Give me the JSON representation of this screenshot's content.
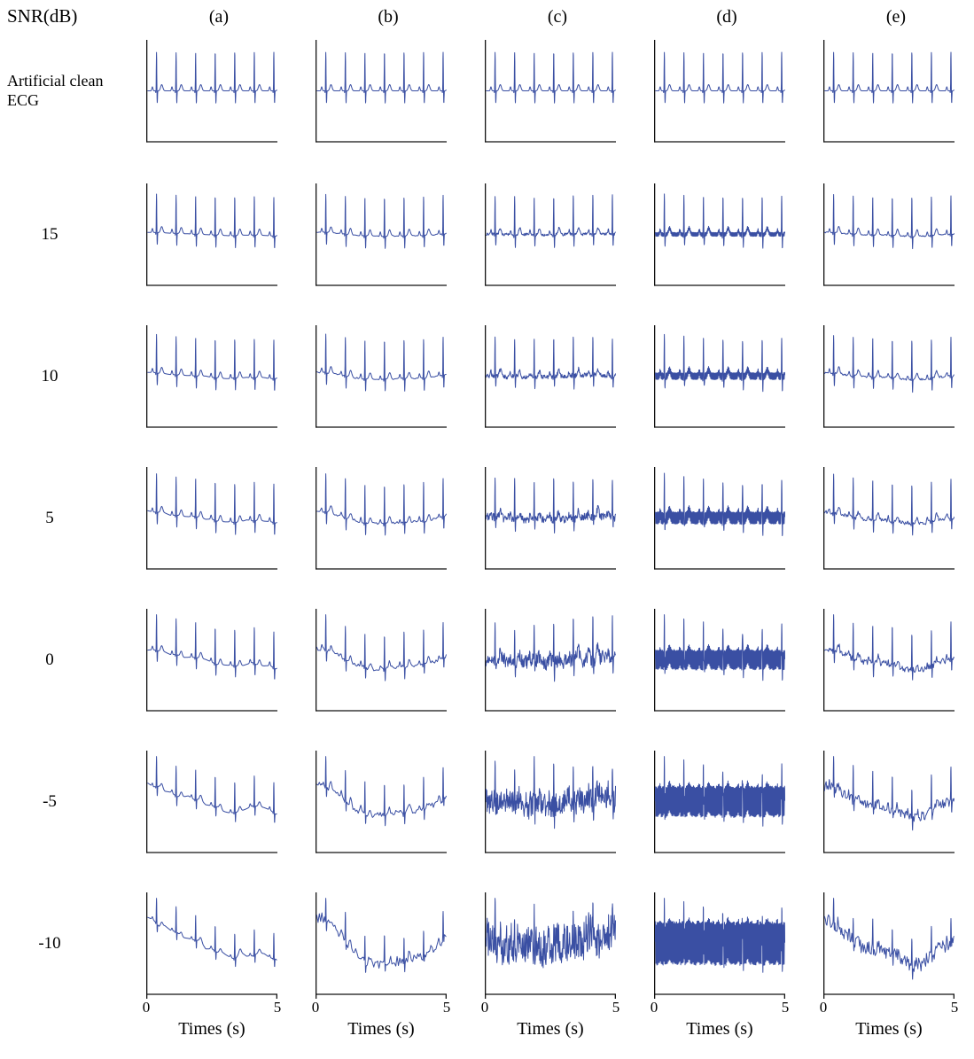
{
  "figure": {
    "corner_label": "SNR(dB)",
    "column_headers": [
      "(a)",
      "(b)",
      "(c)",
      "(d)",
      "(e)"
    ],
    "row_labels": [
      "Artificial clean ECG",
      "15",
      "10",
      "5",
      "0",
      "-5",
      "-10"
    ],
    "x_tick_labels": [
      "0",
      "5"
    ],
    "x_axis_label": "Times (s)"
  },
  "chart_data": {
    "type": "line",
    "layout": {
      "rows": 7,
      "cols": 5,
      "shared_x": true,
      "grid": false,
      "legend": "none"
    },
    "x": {
      "label": "Times (s)",
      "min": 0,
      "max": 5,
      "ticks": [
        0,
        5
      ]
    },
    "rows": [
      {
        "label": "Artificial clean ECG",
        "snr_db": null
      },
      {
        "label": "15",
        "snr_db": 15
      },
      {
        "label": "10",
        "snr_db": 10
      },
      {
        "label": "5",
        "snr_db": 5
      },
      {
        "label": "0",
        "snr_db": 0
      },
      {
        "label": "-5",
        "snr_db": -5
      },
      {
        "label": "-10",
        "snr_db": -10
      }
    ],
    "columns": [
      {
        "header": "(a)",
        "noise_type": "baseline_wander_drift"
      },
      {
        "header": "(b)",
        "noise_type": "baseline_wander_u"
      },
      {
        "header": "(c)",
        "noise_type": "muscle_artifact"
      },
      {
        "header": "(d)",
        "noise_type": "powerline"
      },
      {
        "header": "(e)",
        "noise_type": "composite"
      }
    ],
    "signal": {
      "kind": "synthetic_ecg",
      "duration_s": 5,
      "beats": 7,
      "first_r_peak_s": 0.35,
      "rr_interval_s": 0.755,
      "r_amplitude": 1.25,
      "noise_base_amplitude": 0.55
    },
    "style": {
      "line_color": "#3a4fa3",
      "axis_color": "#121212"
    }
  }
}
